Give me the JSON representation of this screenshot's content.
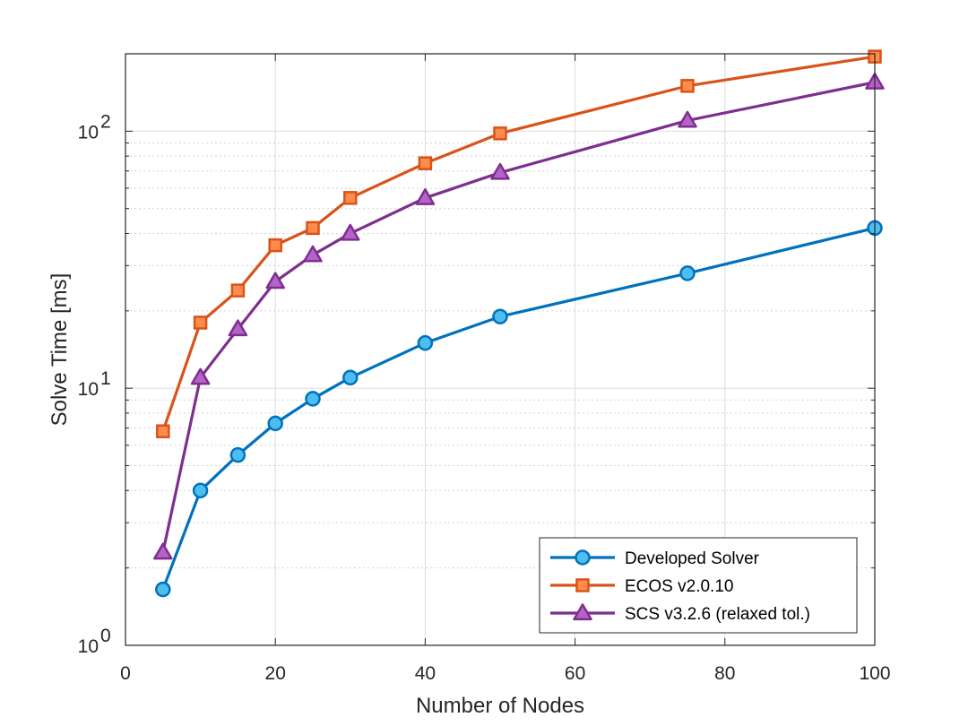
{
  "chart_data": {
    "type": "line",
    "title": "",
    "xlabel": "Number of Nodes",
    "ylabel": "Solve Time [ms]",
    "xscale": "linear",
    "yscale": "log",
    "xlim": [
      0,
      100
    ],
    "ylim": [
      1,
      200
    ],
    "x_ticks": [
      0,
      20,
      40,
      60,
      80,
      100
    ],
    "x_tick_labels": [
      "0",
      "20",
      "40",
      "60",
      "80",
      "100"
    ],
    "y_ticks": [
      {
        "value": 1,
        "base": "10",
        "exp": "0"
      },
      {
        "value": 10,
        "base": "10",
        "exp": "1"
      },
      {
        "value": 100,
        "base": "10",
        "exp": "2"
      }
    ],
    "grid": true,
    "minor_grid": true,
    "legend_position": "bottom-right",
    "series": [
      {
        "name": "Developed Solver",
        "color": "#0072BD",
        "face": "#4DBEEE",
        "marker": "circle",
        "x": [
          5,
          10,
          15,
          20,
          25,
          30,
          40,
          50,
          75,
          100
        ],
        "y": [
          1.65,
          4.0,
          5.5,
          7.3,
          9.1,
          11.0,
          15.0,
          19.0,
          28.0,
          42.0
        ]
      },
      {
        "name": "ECOS v2.0.10",
        "color": "#D95319",
        "face": "#FF8C4D",
        "marker": "square",
        "x": [
          5,
          10,
          15,
          20,
          25,
          30,
          40,
          50,
          75,
          100
        ],
        "y": [
          6.8,
          18.0,
          24.0,
          36.0,
          42.0,
          55.0,
          75.0,
          98.0,
          150.0,
          195.0
        ]
      },
      {
        "name": "SCS v3.2.6 (relaxed tol.)",
        "color": "#7E2F8E",
        "face": "#B464C8",
        "marker": "triangle",
        "x": [
          5,
          10,
          15,
          20,
          25,
          30,
          40,
          50,
          75,
          100
        ],
        "y": [
          2.3,
          11.0,
          17.0,
          26.0,
          33.0,
          40.0,
          55.0,
          69.0,
          110.0,
          155.0
        ]
      }
    ]
  }
}
